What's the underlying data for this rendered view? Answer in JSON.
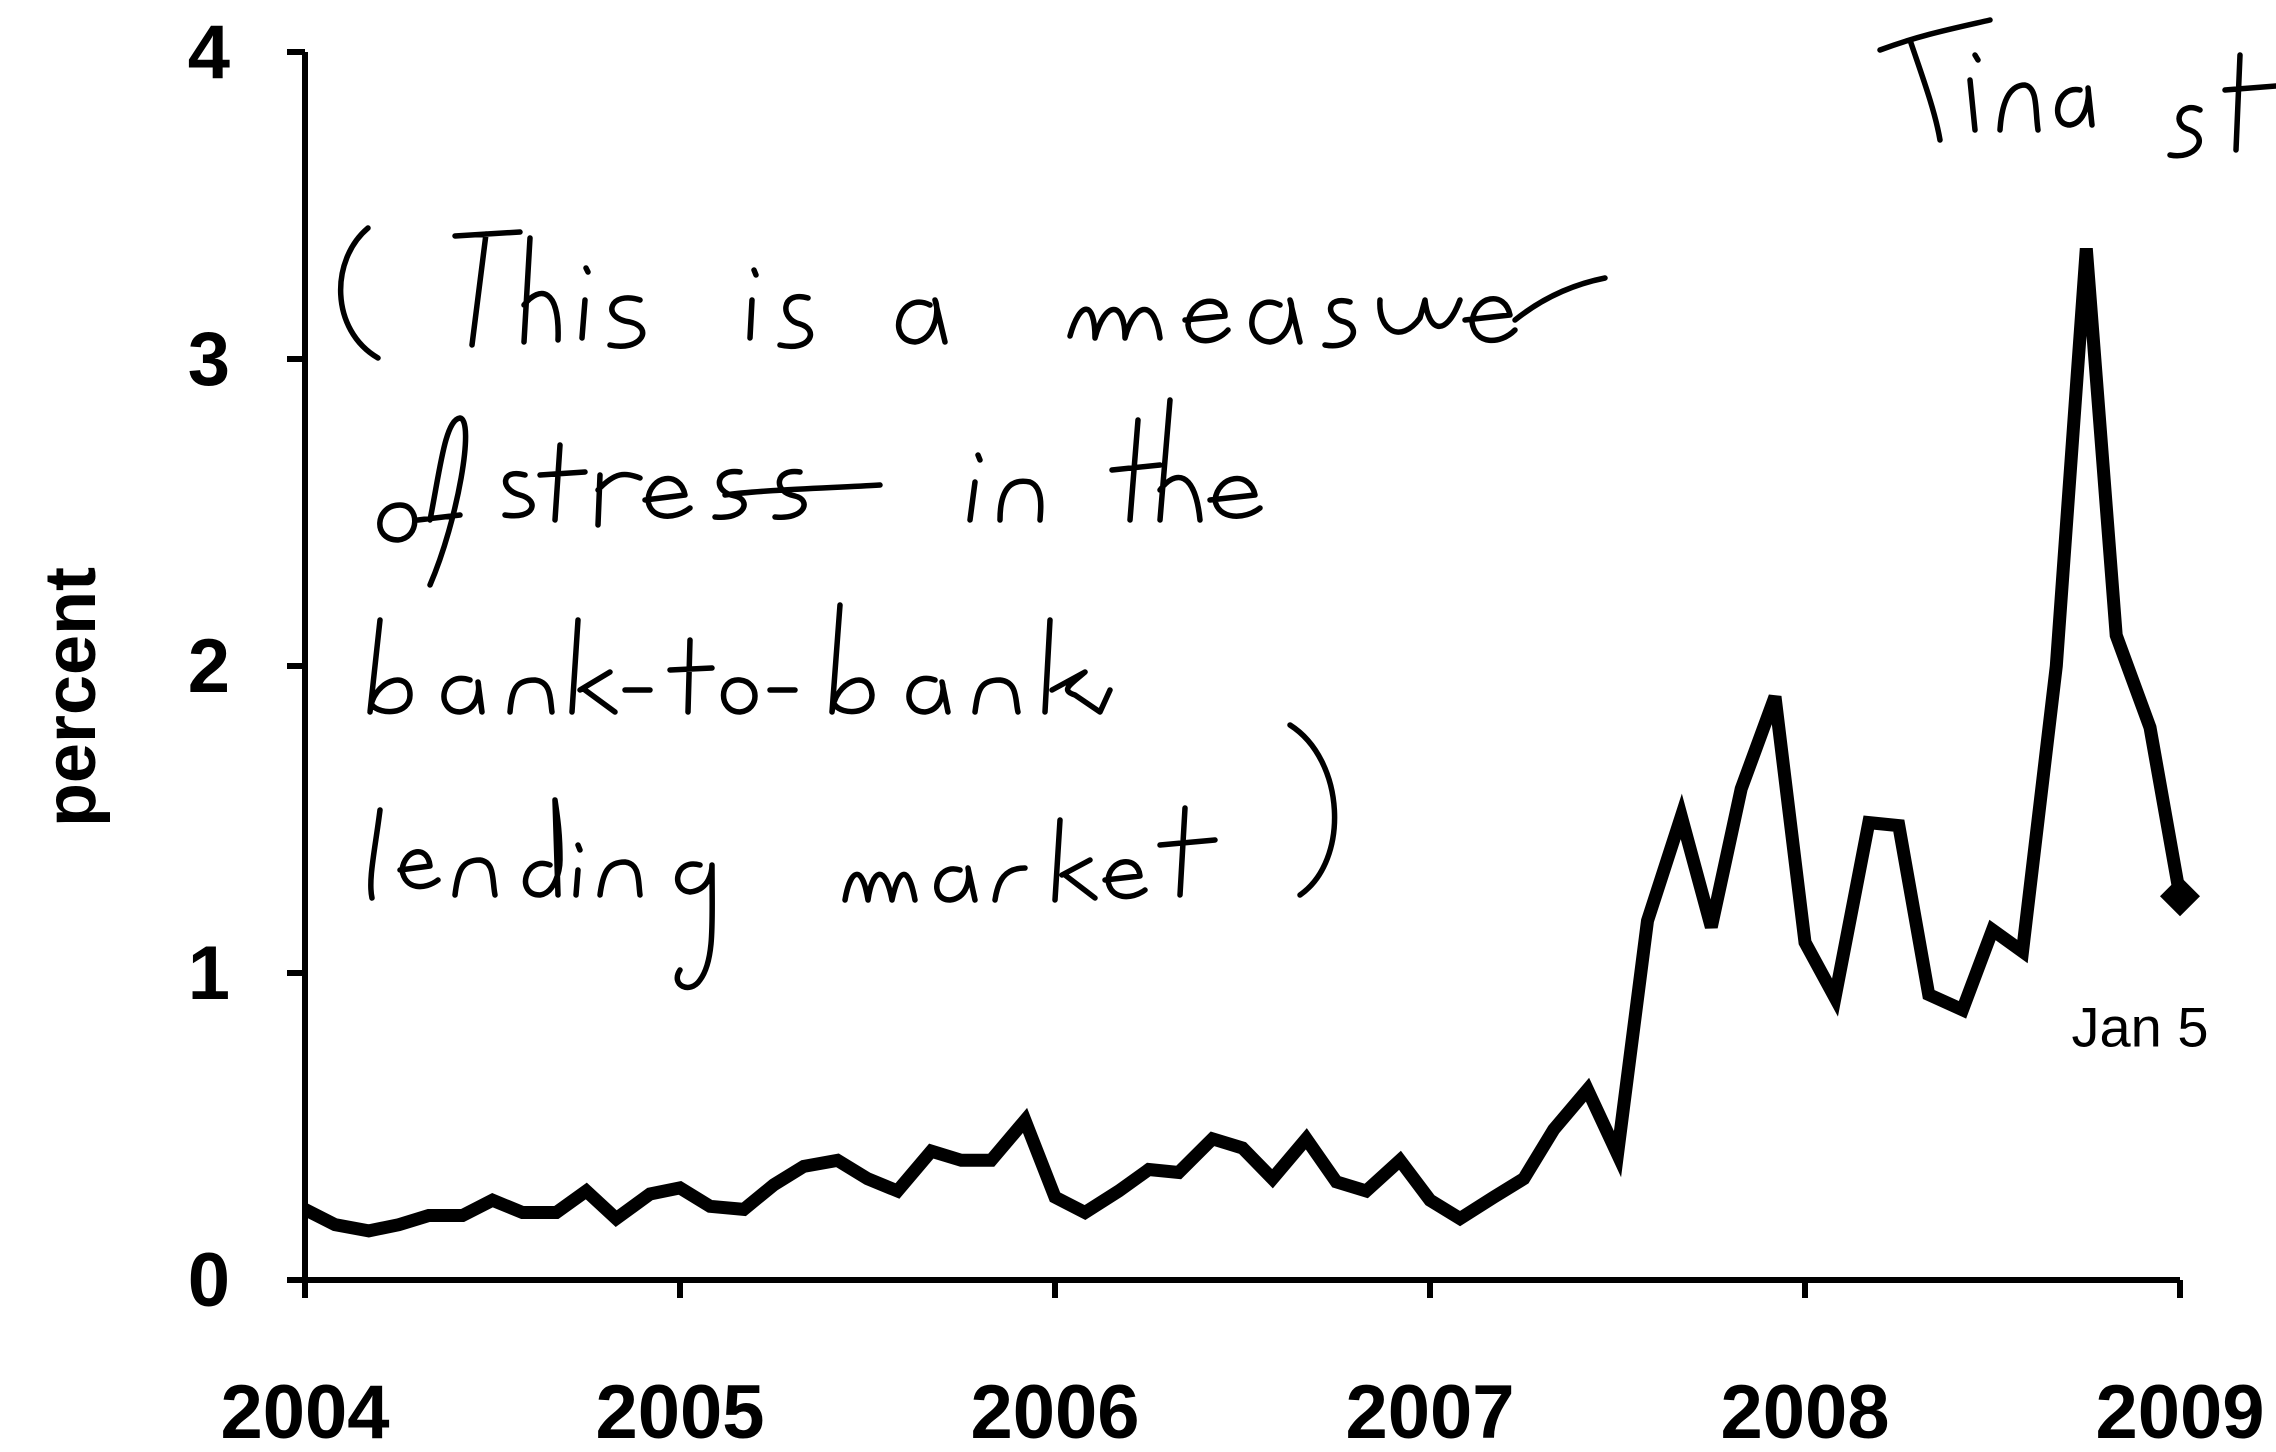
{
  "chart_data": {
    "type": "line",
    "title": "",
    "xlabel": "",
    "ylabel": "percent",
    "xlim": [
      2004,
      2009
    ],
    "ylim": [
      0,
      4
    ],
    "x_ticks": [
      "2004",
      "2005",
      "2006",
      "2007",
      "2008",
      "2009"
    ],
    "y_ticks": [
      "0",
      "1",
      "2",
      "3",
      "4"
    ],
    "grid": false,
    "legend": "none",
    "line_color": "#000000",
    "series": [
      {
        "points": [
          [
            2004.0,
            0.23
          ],
          [
            2004.08,
            0.18
          ],
          [
            2004.17,
            0.16
          ],
          [
            2004.25,
            0.18
          ],
          [
            2004.33,
            0.21
          ],
          [
            2004.42,
            0.21
          ],
          [
            2004.5,
            0.26
          ],
          [
            2004.58,
            0.22
          ],
          [
            2004.67,
            0.22
          ],
          [
            2004.75,
            0.29
          ],
          [
            2004.83,
            0.2
          ],
          [
            2004.92,
            0.28
          ],
          [
            2005.0,
            0.3
          ],
          [
            2005.08,
            0.24
          ],
          [
            2005.17,
            0.23
          ],
          [
            2005.25,
            0.31
          ],
          [
            2005.33,
            0.37
          ],
          [
            2005.42,
            0.39
          ],
          [
            2005.5,
            0.33
          ],
          [
            2005.58,
            0.29
          ],
          [
            2005.67,
            0.42
          ],
          [
            2005.75,
            0.39
          ],
          [
            2005.83,
            0.39
          ],
          [
            2005.92,
            0.52
          ],
          [
            2006.0,
            0.27
          ],
          [
            2006.08,
            0.22
          ],
          [
            2006.17,
            0.29
          ],
          [
            2006.25,
            0.36
          ],
          [
            2006.33,
            0.35
          ],
          [
            2006.42,
            0.46
          ],
          [
            2006.5,
            0.43
          ],
          [
            2006.58,
            0.33
          ],
          [
            2006.67,
            0.46
          ],
          [
            2006.75,
            0.32
          ],
          [
            2006.83,
            0.29
          ],
          [
            2006.92,
            0.39
          ],
          [
            2007.0,
            0.26
          ],
          [
            2007.08,
            0.2
          ],
          [
            2007.17,
            0.27
          ],
          [
            2007.25,
            0.33
          ],
          [
            2007.33,
            0.49
          ],
          [
            2007.42,
            0.62
          ],
          [
            2007.5,
            0.41
          ],
          [
            2007.58,
            1.17
          ],
          [
            2007.67,
            1.51
          ],
          [
            2007.75,
            1.15
          ],
          [
            2007.83,
            1.6
          ],
          [
            2007.92,
            1.9
          ],
          [
            2008.0,
            1.1
          ],
          [
            2008.08,
            0.92
          ],
          [
            2008.17,
            1.49
          ],
          [
            2008.25,
            1.48
          ],
          [
            2008.33,
            0.93
          ],
          [
            2008.42,
            0.88
          ],
          [
            2008.5,
            1.14
          ],
          [
            2008.58,
            1.07
          ],
          [
            2008.67,
            2.0
          ],
          [
            2008.75,
            3.36
          ],
          [
            2008.83,
            2.1
          ],
          [
            2008.92,
            1.8
          ],
          [
            2009.0,
            1.25
          ]
        ]
      }
    ],
    "endpoint": {
      "x": 2009.0,
      "y": 1.25,
      "label": "Jan 5"
    }
  },
  "annotations": {
    "handwritten": [
      "(This is a measure",
      "of stress in the",
      "bank-to-bank",
      "lending market)",
      "Fina",
      "st"
    ]
  }
}
